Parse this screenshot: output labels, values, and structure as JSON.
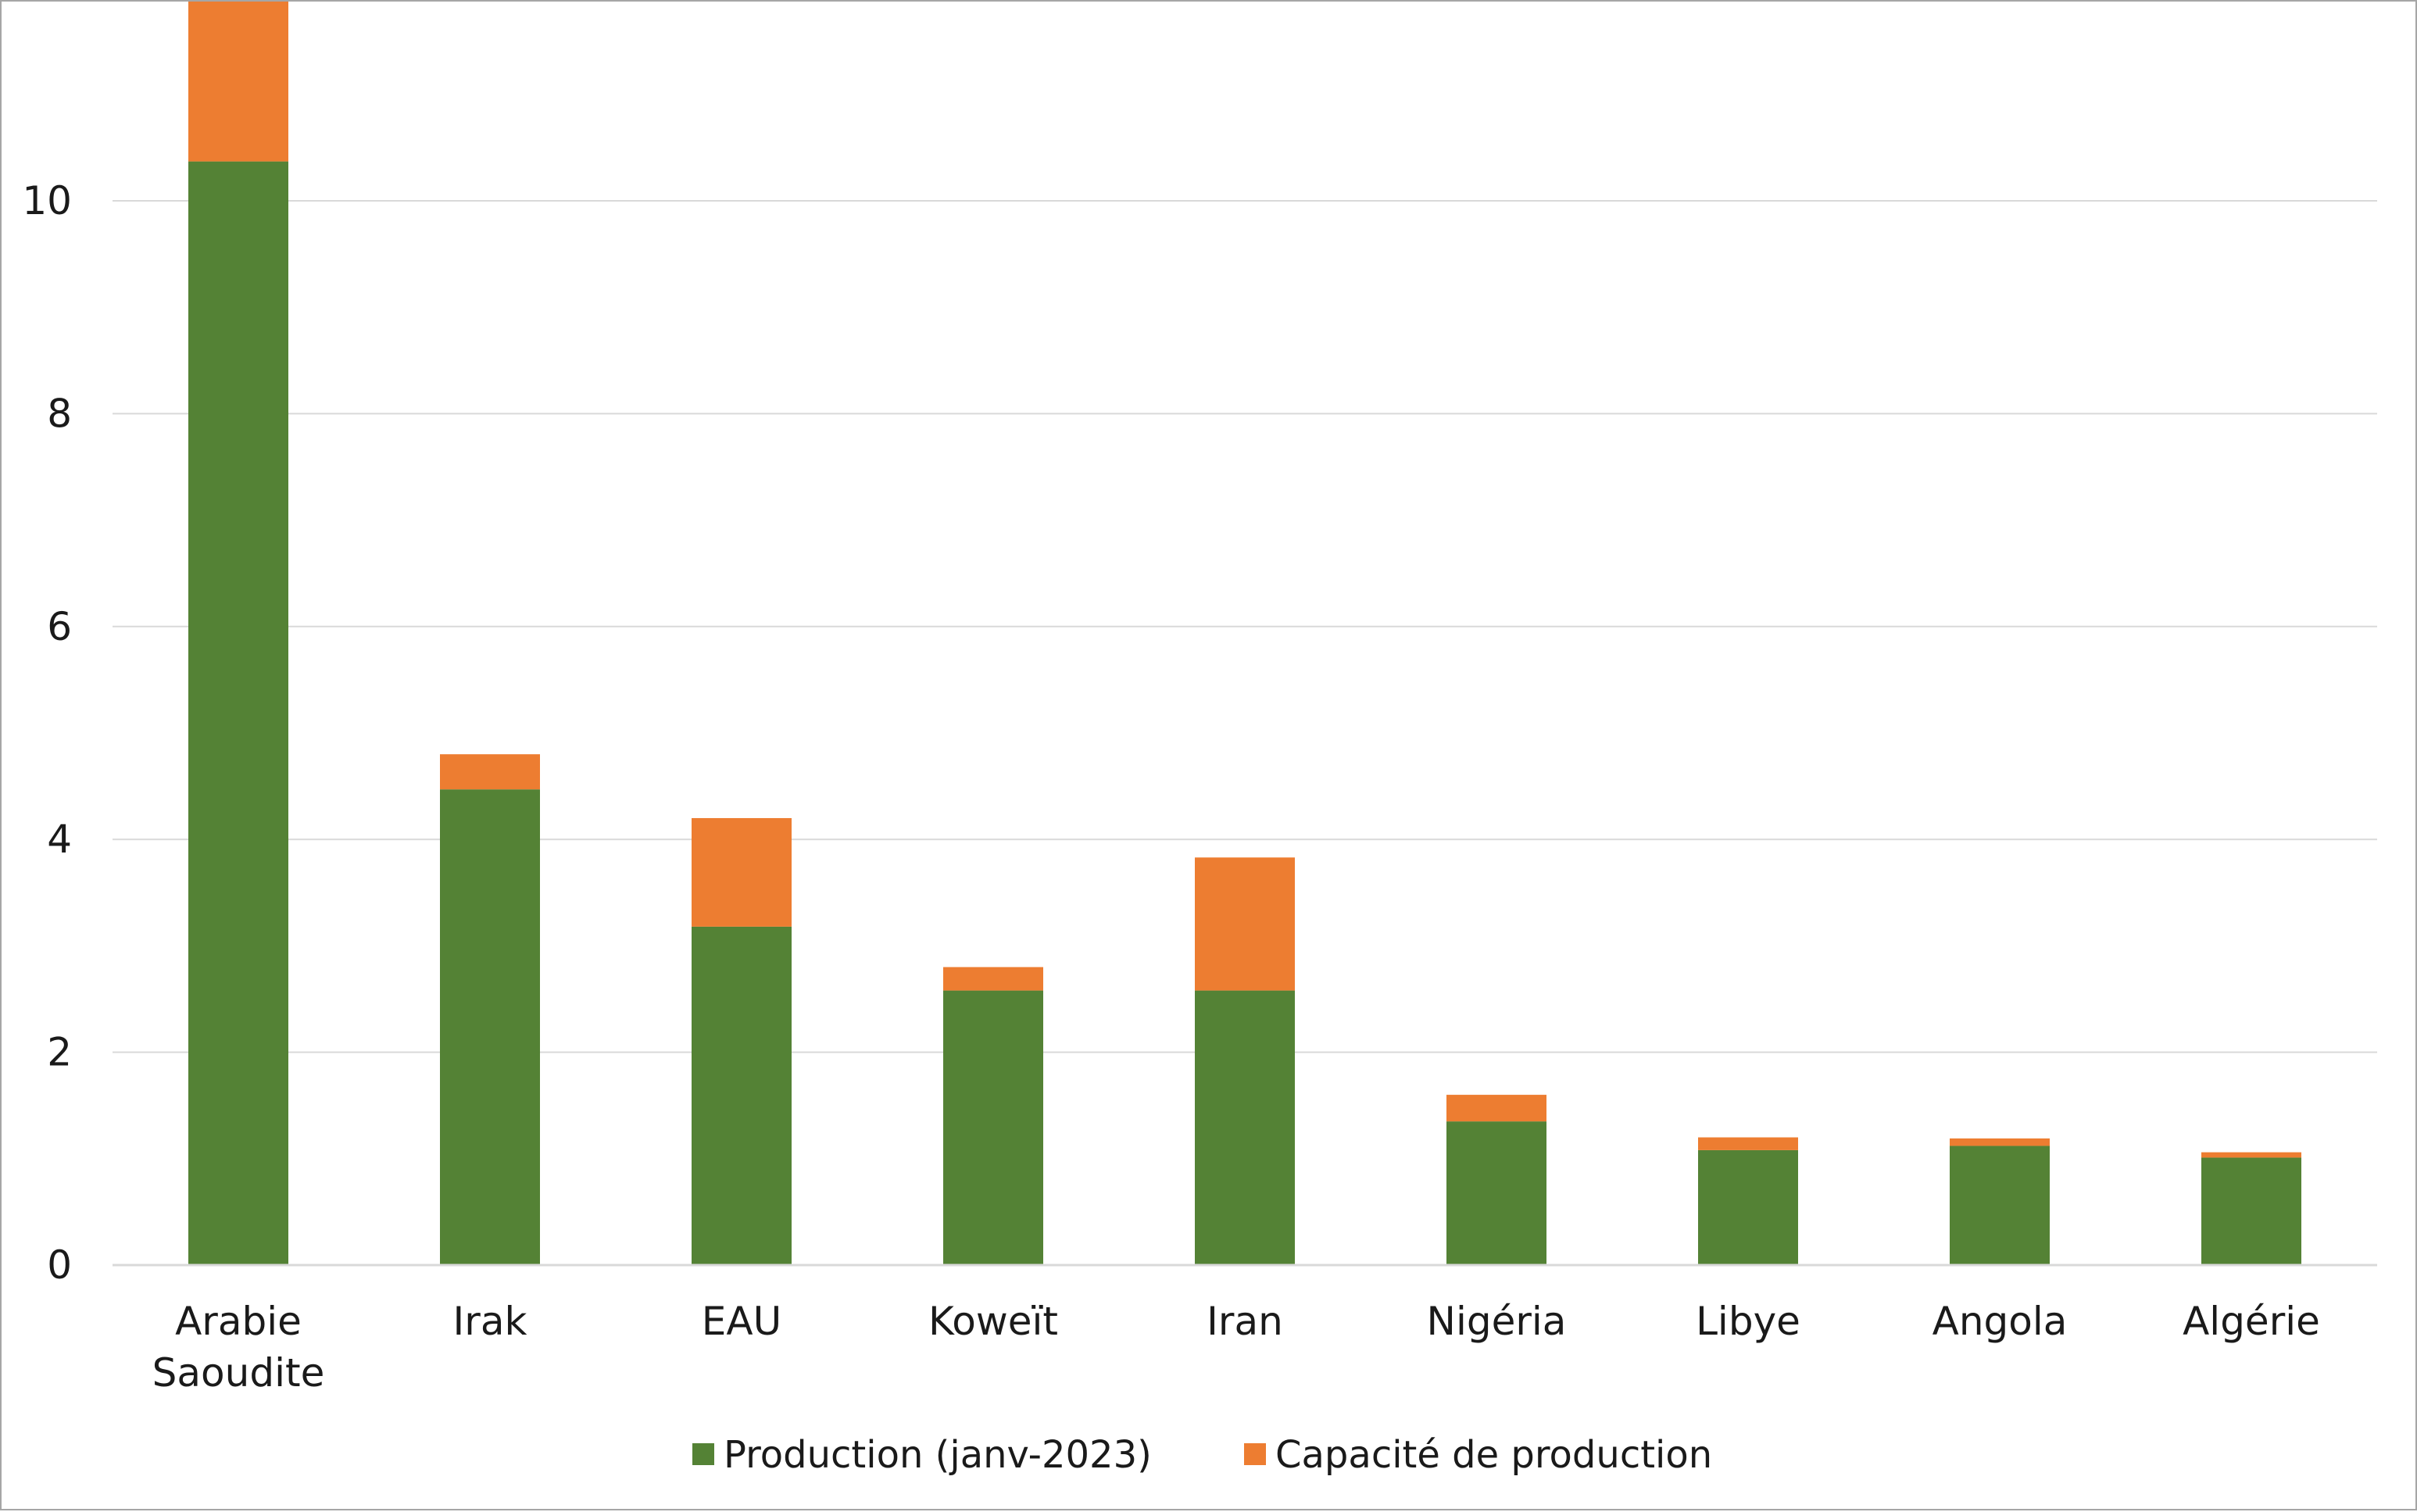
{
  "chart_data": {
    "type": "bar",
    "stacked": true,
    "title": "",
    "xlabel": "",
    "ylabel": "",
    "ylim": [
      0,
      11.8
    ],
    "yticks": [
      0,
      2,
      4,
      6,
      8,
      10
    ],
    "grid": true,
    "legend_position": "bottom",
    "categories": [
      [
        "Arabie",
        "Saoudite"
      ],
      [
        "Irak"
      ],
      [
        "EAU"
      ],
      [
        "Koweït"
      ],
      [
        "Iran"
      ],
      [
        "Nigéria"
      ],
      [
        "Libye"
      ],
      [
        "Angola"
      ],
      [
        "Algérie"
      ]
    ],
    "series": [
      {
        "name": "Production (janv-2023)",
        "color": "#548235",
        "values": [
          10.37,
          4.47,
          3.18,
          2.58,
          2.58,
          1.35,
          1.08,
          1.12,
          1.01
        ]
      },
      {
        "name": "Capacité de production",
        "color": "#ed7d31",
        "values": [
          1.63,
          0.33,
          1.02,
          0.22,
          1.25,
          0.25,
          0.12,
          0.07,
          0.05
        ]
      }
    ]
  }
}
